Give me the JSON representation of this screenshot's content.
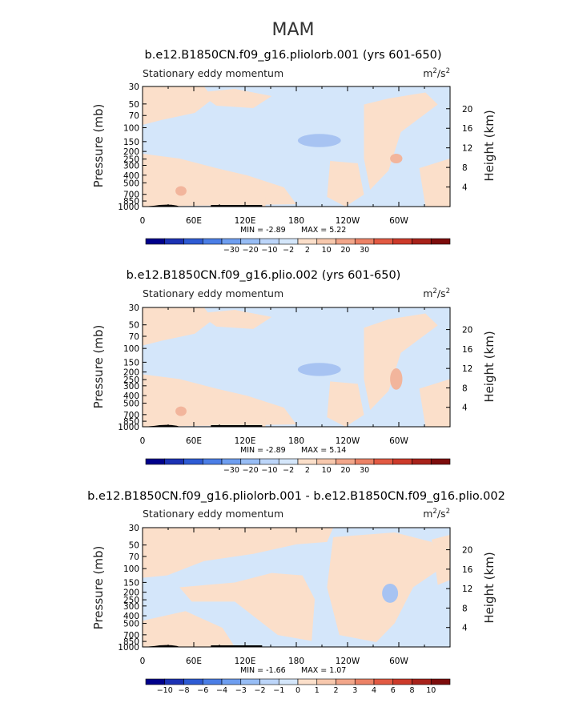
{
  "figure": {
    "season_title": "MAM"
  },
  "colors": {
    "bg_light_blue": "#d4e6fa",
    "bg_light_orange": "#fbdfca",
    "blue_medium": "#a7c3f2",
    "orange_medium": "#f2b59c",
    "terrain": "#000000"
  },
  "chart_data": [
    {
      "type": "heatmap",
      "title": "b.e12.B1850CN.f09_g16.pliolorb.001 (yrs 601-650)",
      "subtitle_left": "Stationary eddy momentum",
      "units": "m²/s²",
      "units_base": "m",
      "units_sup_1": "2",
      "units_mid": "/s",
      "units_sup_2": "2",
      "ylabel": "Pressure (mb)",
      "ylabel_right": "Height (km)",
      "pressure_ticks": [
        "30",
        "50",
        "70",
        "100",
        "150",
        "200",
        "250",
        "300",
        "400",
        "500",
        "700",
        "850",
        "1000"
      ],
      "pressure_values": [
        30,
        50,
        70,
        100,
        150,
        200,
        250,
        300,
        400,
        500,
        700,
        850,
        1000
      ],
      "height_ticks": [
        "20",
        "16",
        "12",
        "8",
        "4"
      ],
      "height_values": [
        20,
        16,
        12,
        8,
        4
      ],
      "lon_ticks": [
        "0",
        "60E",
        "120E",
        "180",
        "120W",
        "60W"
      ],
      "lon_values": [
        0,
        60,
        120,
        180,
        240,
        300
      ],
      "xlim": [
        0,
        360
      ],
      "ylim": [
        1000,
        30
      ],
      "min_text": "MIN =   -2.89",
      "max_text": "MAX =    5.22",
      "colorbar_labels": [
        "-30",
        "-20",
        "-10",
        "-2",
        "2",
        "10",
        "20",
        "30"
      ],
      "colorbar_colors": [
        "#00008b",
        "#1c32b4",
        "#2e5bd4",
        "#4b7ee6",
        "#6e9ef0",
        "#97bdf5",
        "#bcd5f9",
        "#d4e6fa",
        "#fbdfca",
        "#f7c8ad",
        "#f2a68a",
        "#ec8266",
        "#e25a43",
        "#cd3a2a",
        "#a8221a",
        "#7d0c0c"
      ]
    },
    {
      "type": "heatmap",
      "title": "b.e12.B1850CN.f09_g16.plio.002 (yrs 601-650)",
      "subtitle_left": "Stationary eddy momentum",
      "units": "m²/s²",
      "units_base": "m",
      "units_sup_1": "2",
      "units_mid": "/s",
      "units_sup_2": "2",
      "ylabel": "Pressure (mb)",
      "ylabel_right": "Height (km)",
      "pressure_ticks": [
        "30",
        "50",
        "70",
        "100",
        "150",
        "200",
        "250",
        "300",
        "400",
        "500",
        "700",
        "850",
        "1000"
      ],
      "pressure_values": [
        30,
        50,
        70,
        100,
        150,
        200,
        250,
        300,
        400,
        500,
        700,
        850,
        1000
      ],
      "height_ticks": [
        "20",
        "16",
        "12",
        "8",
        "4"
      ],
      "height_values": [
        20,
        16,
        12,
        8,
        4
      ],
      "lon_ticks": [
        "0",
        "60E",
        "120E",
        "180",
        "120W",
        "60W"
      ],
      "lon_values": [
        0,
        60,
        120,
        180,
        240,
        300
      ],
      "xlim": [
        0,
        360
      ],
      "ylim": [
        1000,
        30
      ],
      "min_text": "MIN =   -2.89",
      "max_text": "MAX =    5.14",
      "colorbar_labels": [
        "-30",
        "-20",
        "-10",
        "-2",
        "2",
        "10",
        "20",
        "30"
      ],
      "colorbar_colors": [
        "#00008b",
        "#1c32b4",
        "#2e5bd4",
        "#4b7ee6",
        "#6e9ef0",
        "#97bdf5",
        "#bcd5f9",
        "#d4e6fa",
        "#fbdfca",
        "#f7c8ad",
        "#f2a68a",
        "#ec8266",
        "#e25a43",
        "#cd3a2a",
        "#a8221a",
        "#7d0c0c"
      ]
    },
    {
      "type": "heatmap",
      "title": "b.e12.B1850CN.f09_g16.pliolorb.001 - b.e12.B1850CN.f09_g16.plio.002",
      "subtitle_left": "Stationary eddy momentum",
      "units": "m²/s²",
      "units_base": "m",
      "units_sup_1": "2",
      "units_mid": "/s",
      "units_sup_2": "2",
      "ylabel": "Pressure (mb)",
      "ylabel_right": "Height (km)",
      "pressure_ticks": [
        "30",
        "50",
        "70",
        "100",
        "150",
        "200",
        "250",
        "300",
        "400",
        "500",
        "700",
        "850",
        "1000"
      ],
      "pressure_values": [
        30,
        50,
        70,
        100,
        150,
        200,
        250,
        300,
        400,
        500,
        700,
        850,
        1000
      ],
      "height_ticks": [
        "20",
        "16",
        "12",
        "8",
        "4"
      ],
      "height_values": [
        20,
        16,
        12,
        8,
        4
      ],
      "lon_ticks": [
        "0",
        "60E",
        "120E",
        "180",
        "120W",
        "60W"
      ],
      "lon_values": [
        0,
        60,
        120,
        180,
        240,
        300
      ],
      "xlim": [
        0,
        360
      ],
      "ylim": [
        1000,
        30
      ],
      "min_text": "MIN =   -1.66",
      "max_text": "MAX =    1.07",
      "colorbar_labels": [
        "-10",
        "-8",
        "-6",
        "-4",
        "-3",
        "-2",
        "-1",
        "0",
        "1",
        "2",
        "3",
        "4",
        "6",
        "8",
        "10"
      ],
      "colorbar_colors": [
        "#00008b",
        "#1c32b4",
        "#2e5bd4",
        "#4b7ee6",
        "#6e9ef0",
        "#97bdf5",
        "#bcd5f9",
        "#d4e6fa",
        "#fbdfca",
        "#f7c8ad",
        "#f2a68a",
        "#ec8266",
        "#e25a43",
        "#cd3a2a",
        "#a8221a",
        "#7d0c0c"
      ]
    }
  ]
}
